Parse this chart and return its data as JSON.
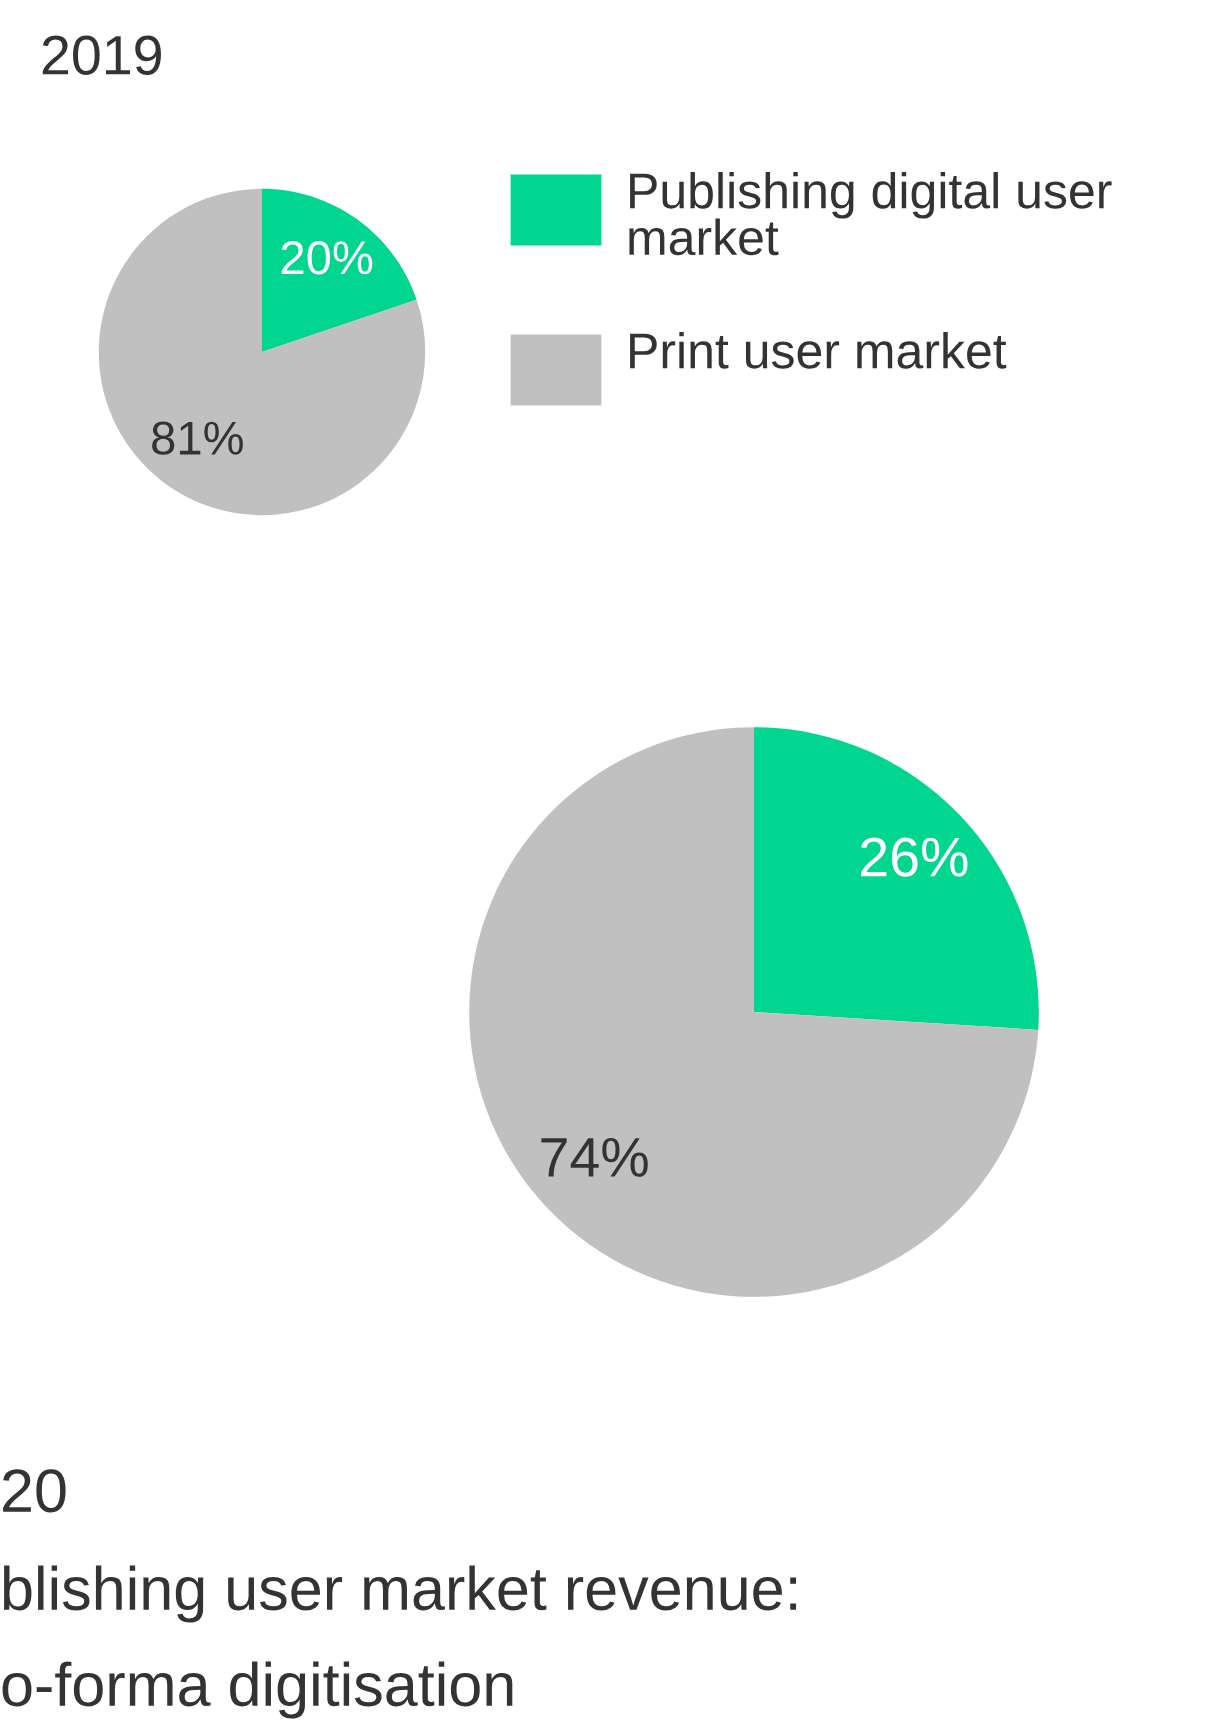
{
  "chart_data": [
    {
      "type": "pie",
      "title": "2019",
      "categories": [
        "Publishing digital user market",
        "Print user market"
      ],
      "values": [
        20,
        81
      ],
      "value_labels": [
        "20%",
        "81%"
      ],
      "colors": [
        "#00d68f",
        "#c0c0c0"
      ],
      "legend": "right"
    },
    {
      "type": "pie",
      "title": "20",
      "categories": [
        null,
        null
      ],
      "values": [
        26,
        74
      ],
      "value_labels": [
        "26%",
        "74%"
      ],
      "colors": [
        "#00d68f",
        "#c0c0c0"
      ],
      "annotations": [
        "blishing user market revenue:",
        "o-forma digitisation"
      ]
    }
  ]
}
